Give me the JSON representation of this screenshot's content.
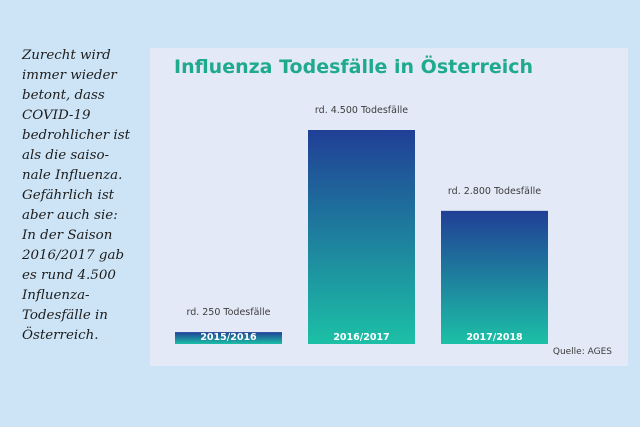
{
  "sidebar": {
    "lines": [
      "Zurecht wird",
      "immer wieder",
      "betont, dass",
      "COVID-19",
      "bedrohlicher ist",
      "als die saiso-",
      "nale Influenza.",
      "Gefährlich ist",
      "aber auch sie:",
      "In der Saison",
      "2016/2017 gab",
      "es rund 4.500",
      "Influenza-",
      "Todesfälle in",
      "Österreich."
    ]
  },
  "chart_data": {
    "type": "bar",
    "title": "Influenza Todesfälle in Österreich",
    "categories": [
      "2015/2016",
      "2016/2017",
      "2017/2018"
    ],
    "values": [
      250,
      4500,
      2800
    ],
    "data_labels": [
      "rd. 250 Todesfälle",
      "rd. 4.500 Todesfälle",
      "rd. 2.800 Todesfälle"
    ],
    "ylim": [
      0,
      4500
    ],
    "grid": false,
    "source": "Quelle: AGES"
  },
  "colors": {
    "bar_top": "#203f96",
    "bar_bottom": "#1cc0a6",
    "title": "#1faa8e",
    "panel": "#e3e9f6",
    "background": "#cde4f6"
  }
}
